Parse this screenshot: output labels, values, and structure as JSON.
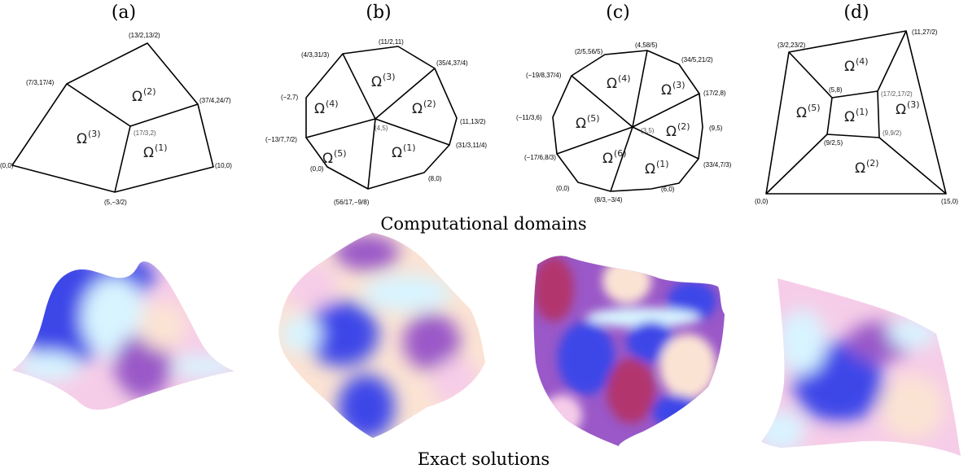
{
  "panels": [
    {
      "label": "(a)",
      "vertex_labels": [
        "(13/2,13/2)",
        "(7/3,17/4)",
        "(37/4,24/7)",
        "(17/3,2)",
        "(0,0)",
        "(10,0)",
        "(5,−3/2)"
      ],
      "regions": [
        {
          "symbol": "Ω",
          "sup": "(2)"
        },
        {
          "symbol": "Ω",
          "sup": "(3)"
        },
        {
          "symbol": "Ω",
          "sup": "(1)"
        }
      ]
    },
    {
      "label": "(b)",
      "vertex_labels": [
        "(11/2,11)",
        "(4/3,31/3)",
        "(35/4,37/4)",
        "(−2,7)",
        "(11,13/2)",
        "(4,5)",
        "(−13/7,7/2)",
        "(31/3,11/4)",
        "(0,0)",
        "(8,0)",
        "(56/17,−9/8)"
      ],
      "regions": [
        {
          "symbol": "Ω",
          "sup": "(3)"
        },
        {
          "symbol": "Ω",
          "sup": "(4)"
        },
        {
          "symbol": "Ω",
          "sup": "(2)"
        },
        {
          "symbol": "Ω",
          "sup": "(5)"
        },
        {
          "symbol": "Ω",
          "sup": "(1)"
        }
      ]
    },
    {
      "label": "(c)",
      "vertex_labels": [
        "(2/5,56/5)",
        "(4,58/5)",
        "(34/5,21/2)",
        "(−19/8,37/4)",
        "(17/2,8)",
        "(−11/3,6)",
        "(3,5)",
        "(9,5)",
        "(−17/6,8/3)",
        "(33/4,7/3)",
        "(0,0)",
        "(6,0)",
        "(8/3,−3/4)"
      ],
      "regions": [
        {
          "symbol": "Ω",
          "sup": "(4)"
        },
        {
          "symbol": "Ω",
          "sup": "(3)"
        },
        {
          "symbol": "Ω",
          "sup": "(5)"
        },
        {
          "symbol": "Ω",
          "sup": "(2)"
        },
        {
          "symbol": "Ω",
          "sup": "(6)"
        },
        {
          "symbol": "Ω",
          "sup": "(1)"
        }
      ]
    },
    {
      "label": "(d)",
      "vertex_labels": [
        "(3/2,23/2)",
        "(11,27/2)",
        "(5,8)",
        "(17/2,17/2)",
        "(9/2,5)",
        "(9,9/2)",
        "(0,0)",
        "(15,0)"
      ],
      "regions": [
        {
          "symbol": "Ω",
          "sup": "(4)"
        },
        {
          "symbol": "Ω",
          "sup": "(5)"
        },
        {
          "symbol": "Ω",
          "sup": "(1)"
        },
        {
          "symbol": "Ω",
          "sup": "(3)"
        },
        {
          "symbol": "Ω",
          "sup": "(2)"
        }
      ]
    }
  ],
  "captions": {
    "domains": "Computational domains",
    "solutions": "Exact solutions"
  },
  "colors": {
    "blue": "#3c46e8",
    "cyan": "#d8f4ff",
    "pink": "#f6cde8",
    "peach": "#fbe3d4",
    "purple": "#9a58c8",
    "magenta": "#b2346e"
  }
}
